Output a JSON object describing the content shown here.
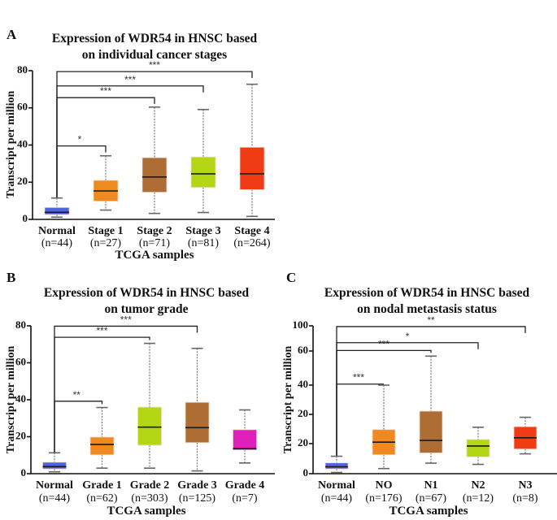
{
  "chart_data": [
    {
      "type": "box",
      "panel": "A",
      "title": [
        "Expression of WDR54 in HNSC based",
        "on individual cancer stages"
      ],
      "xlabel": "TCGA samples",
      "ylabel": "Transcript per million",
      "ylim": [
        0,
        80
      ],
      "yticks": [
        0,
        20,
        40,
        60,
        80
      ],
      "categories": [
        "Normal",
        "Stage 1",
        "Stage 2",
        "Stage 3",
        "Stage 4"
      ],
      "n_labels": [
        "(n=44)",
        "(n=27)",
        "(n=71)",
        "(n=81)",
        "(n=264)"
      ],
      "colors": [
        "#4f64e0",
        "#f08a20",
        "#ad6d35",
        "#b5d614",
        "#f03c14"
      ],
      "boxes": [
        {
          "min": 1.2,
          "q1": 2.6,
          "median": 3.8,
          "q3": 6.4,
          "max": 11.5
        },
        {
          "min": 5.0,
          "q1": 9.8,
          "median": 15.3,
          "q3": 21.0,
          "max": 34.2
        },
        {
          "min": 3.2,
          "q1": 14.6,
          "median": 22.8,
          "q3": 33.2,
          "max": 60.4
        },
        {
          "min": 3.7,
          "q1": 17.2,
          "median": 24.5,
          "q3": 33.6,
          "max": 59.1
        },
        {
          "min": 1.6,
          "q1": 16.0,
          "median": 24.5,
          "q3": 38.8,
          "max": 72.7
        }
      ],
      "comparisons": [
        {
          "from": 0,
          "to": 1,
          "label": "*",
          "level": 39.5
        },
        {
          "from": 0,
          "to": 2,
          "label": "***",
          "level": 65.5
        },
        {
          "from": 0,
          "to": 3,
          "label": "***",
          "level": 71.8
        },
        {
          "from": 0,
          "to": 4,
          "label": "***",
          "level": 79.5
        }
      ]
    },
    {
      "type": "box",
      "panel": "B",
      "title": [
        "Expression of WDR54 in HNSC based",
        "on tumor grade"
      ],
      "xlabel": "TCGA samples",
      "ylabel": "Transcript per million",
      "ylim": [
        0,
        80
      ],
      "yticks": [
        0,
        20,
        40,
        60,
        80
      ],
      "categories": [
        "Normal",
        "Grade 1",
        "Grade 2",
        "Grade 3",
        "Grade 4"
      ],
      "n_labels": [
        "(n=44)",
        "(n=62)",
        "(n=303)",
        "(n=125)",
        "(n=7)"
      ],
      "colors": [
        "#4f64e0",
        "#f08a20",
        "#b5d614",
        "#ad6d35",
        "#e020b8"
      ],
      "boxes": [
        {
          "min": 1.0,
          "q1": 2.6,
          "median": 3.8,
          "q3": 6.2,
          "max": 11.3
        },
        {
          "min": 3.0,
          "q1": 10.2,
          "median": 15.8,
          "q3": 19.8,
          "max": 35.8
        },
        {
          "min": 3.0,
          "q1": 15.4,
          "median": 25.2,
          "q3": 36.0,
          "max": 70.5
        },
        {
          "min": 1.5,
          "q1": 16.8,
          "median": 24.9,
          "q3": 38.6,
          "max": 67.8
        },
        {
          "min": 5.8,
          "q1": 12.8,
          "median": 13.6,
          "q3": 23.8,
          "max": 34.5
        }
      ],
      "comparisons": [
        {
          "from": 0,
          "to": 1,
          "label": "**",
          "level": 39.2
        },
        {
          "from": 0,
          "to": 2,
          "label": "***",
          "level": 73.8
        },
        {
          "from": 0,
          "to": 3,
          "label": "***",
          "level": 79.8
        }
      ]
    },
    {
      "type": "box",
      "panel": "C",
      "title": [
        "Expression of WDR54 in HNSC based",
        "on nodal metastasis status"
      ],
      "xlabel": "TCGA samples",
      "ylabel": "Transcript per million",
      "yticks": [
        0,
        20,
        20,
        40,
        60,
        100
      ],
      "yaxis_note": "tick labels as printed; values given in tick-index units (0 = first tick, 5 = last tick)",
      "ylim": [
        0,
        5
      ],
      "categories": [
        "Normal",
        "NO",
        "N1",
        "N2",
        "N3"
      ],
      "n_labels": [
        "(n=44)",
        "(n=176)",
        "(n=67)",
        "(n=12)",
        "(n=8)"
      ],
      "colors": [
        "#4f64e0",
        "#f08a20",
        "#ad6d35",
        "#b5d614",
        "#f03c14"
      ],
      "boxes": [
        {
          "min": 0.04,
          "q1": 0.16,
          "median": 0.23,
          "q3": 0.36,
          "max": 0.58
        },
        {
          "min": 0.17,
          "q1": 0.63,
          "median": 1.05,
          "q3": 1.48,
          "max": 3.0
        },
        {
          "min": 0.35,
          "q1": 0.69,
          "median": 1.11,
          "q3": 2.11,
          "max": 3.85
        },
        {
          "min": 0.31,
          "q1": 0.56,
          "median": 0.92,
          "q3": 1.14,
          "max": 1.56
        },
        {
          "min": 0.66,
          "q1": 0.82,
          "median": 1.2,
          "q3": 1.58,
          "max": 1.9
        }
      ],
      "comparisons": [
        {
          "from": 0,
          "to": 1,
          "label": "***",
          "level": 3.03
        },
        {
          "from": 0,
          "to": 2,
          "label": "***",
          "level": 4.02
        },
        {
          "from": 0,
          "to": 3,
          "label": "*",
          "level": 4.33
        },
        {
          "from": 0,
          "to": 4,
          "label": "**",
          "level": 4.97
        }
      ]
    }
  ],
  "panels": {
    "A": {
      "letter": "A"
    },
    "B": {
      "letter": "B"
    },
    "C": {
      "letter": "C"
    }
  }
}
